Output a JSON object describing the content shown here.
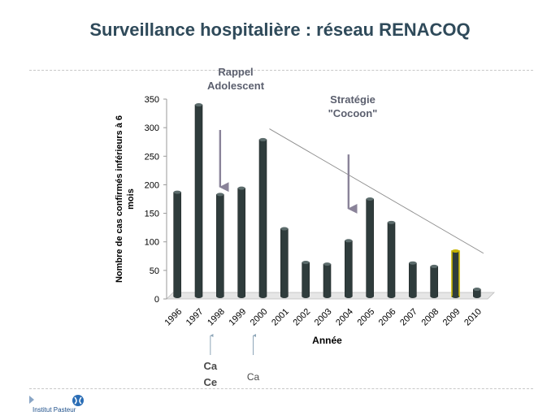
{
  "slide": {
    "title": "Surveillance hospitalière : réseau RENACOQ",
    "logo_text": "Institut Pasteur"
  },
  "chart_data": {
    "type": "bar",
    "categories": [
      "1996",
      "1997",
      "1998",
      "1999",
      "2000",
      "2001",
      "2002",
      "2003",
      "2004",
      "2005",
      "2006",
      "2007",
      "2008",
      "2009",
      "2010"
    ],
    "values": [
      187,
      340,
      183,
      194,
      279,
      123,
      64,
      61,
      102,
      175,
      134,
      63,
      57,
      84,
      17
    ],
    "highlight_index": 13,
    "bar_color": "#2f3c3c",
    "highlight_color": "#c8b400",
    "ylabel": "Nombre de cas confirmés inférieurs à 6 mois",
    "xlabel": "Année",
    "ylim": [
      0,
      350
    ],
    "yticks": [
      0,
      50,
      100,
      150,
      200,
      250,
      300,
      350
    ],
    "trend_line": {
      "from": [
        "2000",
        298
      ],
      "to": [
        "2010",
        80
      ]
    },
    "annotations": [
      {
        "text": [
          "Rappel",
          "Adolescent"
        ],
        "arrow_at": "1998",
        "arrow_from": 296,
        "arrow_to": 196
      },
      {
        "text": [
          "Stratégie",
          "\"Cocoon\""
        ],
        "arrow_at": "2004",
        "arrow_from": 253,
        "arrow_to": 158
      }
    ],
    "below_labels": [
      {
        "text": [
          "Ca",
          "Ce"
        ],
        "at": "1998"
      },
      {
        "text": [
          "Ca"
        ],
        "at": "2000"
      }
    ]
  }
}
